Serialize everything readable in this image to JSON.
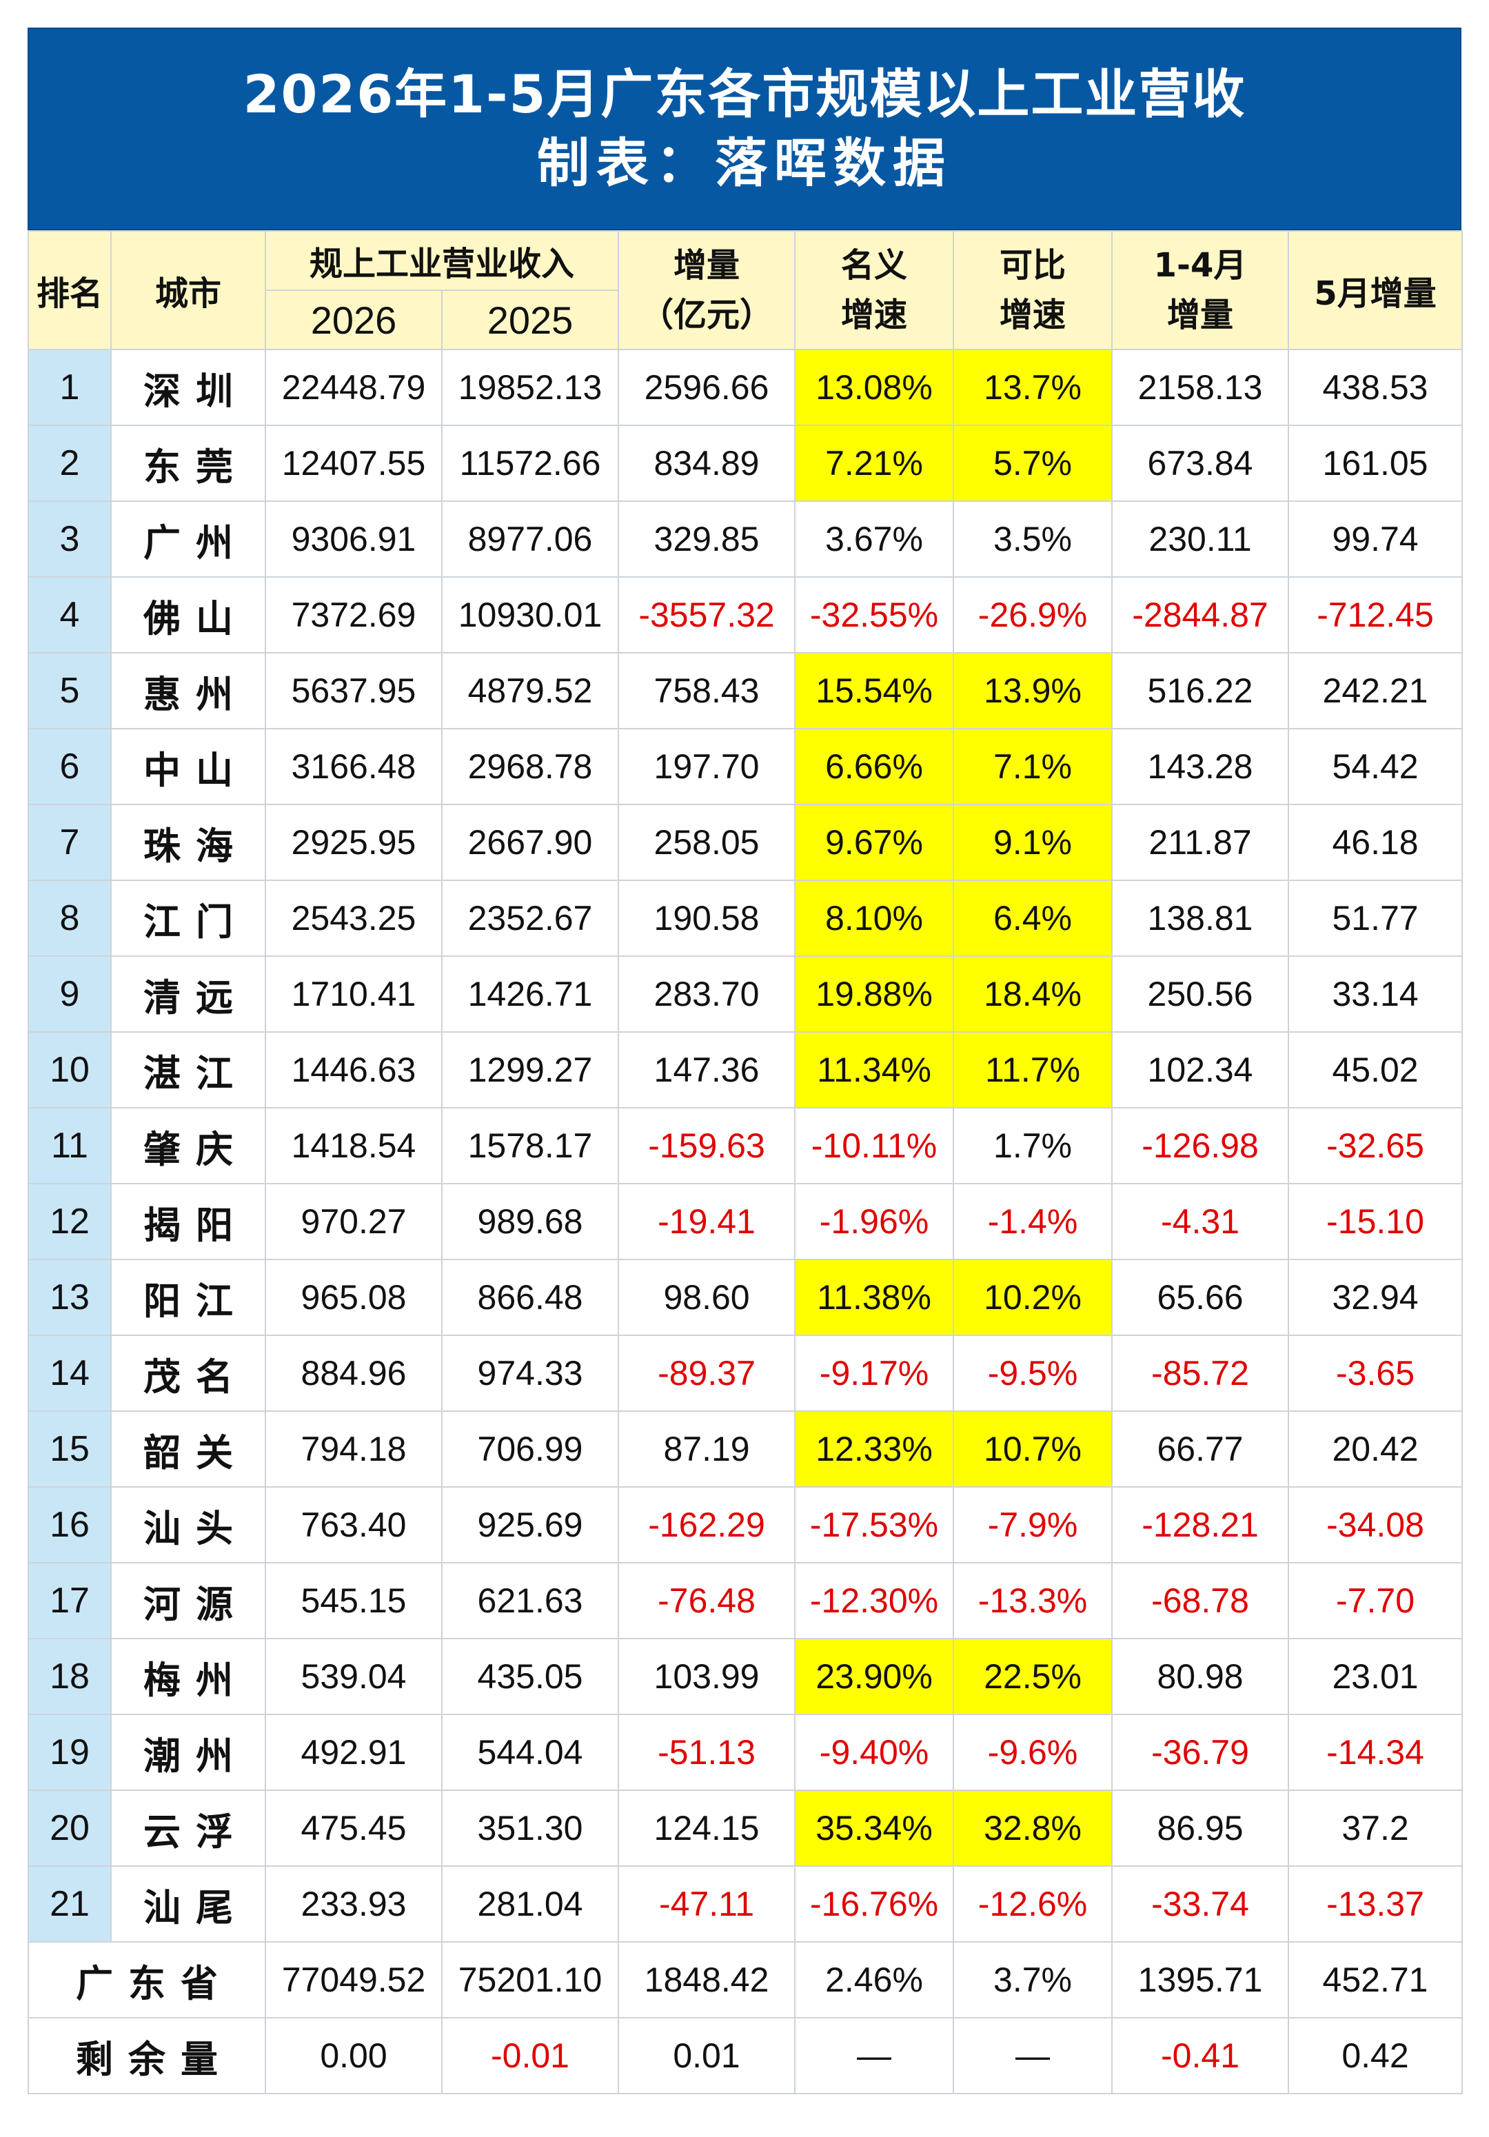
{
  "title": {
    "line1": "2026年1-5月广东各市规模以上工业营收",
    "line2": "制表：落晖数据"
  },
  "header": {
    "rank": "排名",
    "city": "城市",
    "revenue": "规上工业营业收入",
    "y2026": "2026",
    "y2025": "2025",
    "increase_l1": "增量",
    "increase_l2": "（亿元）",
    "nominal_l1": "名义",
    "nominal_l2": "增速",
    "comparable_l1": "可比",
    "comparable_l2": "增速",
    "jan_apr_l1": "1-4月",
    "jan_apr_l2": "增量",
    "may": "5月增量"
  },
  "rows": [
    {
      "rank": "1",
      "city": "深圳",
      "y2026": "22448.79",
      "y2025": "19852.13",
      "increase": "2596.66",
      "nominal": "13.08%",
      "comparable": "13.7%",
      "jan_apr": "2158.13",
      "may": "438.53"
    },
    {
      "rank": "2",
      "city": "东莞",
      "y2026": "12407.55",
      "y2025": "11572.66",
      "increase": "834.89",
      "nominal": "7.21%",
      "comparable": "5.7%",
      "jan_apr": "673.84",
      "may": "161.05"
    },
    {
      "rank": "3",
      "city": "广州",
      "y2026": "9306.91",
      "y2025": "8977.06",
      "increase": "329.85",
      "nominal": "3.67%",
      "comparable": "3.5%",
      "jan_apr": "230.11",
      "may": "99.74"
    },
    {
      "rank": "4",
      "city": "佛山",
      "y2026": "7372.69",
      "y2025": "10930.01",
      "increase": "-3557.32",
      "nominal": "-32.55%",
      "comparable": "-26.9%",
      "jan_apr": "-2844.87",
      "may": "-712.45"
    },
    {
      "rank": "5",
      "city": "惠州",
      "y2026": "5637.95",
      "y2025": "4879.52",
      "increase": "758.43",
      "nominal": "15.54%",
      "comparable": "13.9%",
      "jan_apr": "516.22",
      "may": "242.21"
    },
    {
      "rank": "6",
      "city": "中山",
      "y2026": "3166.48",
      "y2025": "2968.78",
      "increase": "197.70",
      "nominal": "6.66%",
      "comparable": "7.1%",
      "jan_apr": "143.28",
      "may": "54.42"
    },
    {
      "rank": "7",
      "city": "珠海",
      "y2026": "2925.95",
      "y2025": "2667.90",
      "increase": "258.05",
      "nominal": "9.67%",
      "comparable": "9.1%",
      "jan_apr": "211.87",
      "may": "46.18"
    },
    {
      "rank": "8",
      "city": "江门",
      "y2026": "2543.25",
      "y2025": "2352.67",
      "increase": "190.58",
      "nominal": "8.10%",
      "comparable": "6.4%",
      "jan_apr": "138.81",
      "may": "51.77"
    },
    {
      "rank": "9",
      "city": "清远",
      "y2026": "1710.41",
      "y2025": "1426.71",
      "increase": "283.70",
      "nominal": "19.88%",
      "comparable": "18.4%",
      "jan_apr": "250.56",
      "may": "33.14"
    },
    {
      "rank": "10",
      "city": "湛江",
      "y2026": "1446.63",
      "y2025": "1299.27",
      "increase": "147.36",
      "nominal": "11.34%",
      "comparable": "11.7%",
      "jan_apr": "102.34",
      "may": "45.02"
    },
    {
      "rank": "11",
      "city": "肇庆",
      "y2026": "1418.54",
      "y2025": "1578.17",
      "increase": "-159.63",
      "nominal": "-10.11%",
      "comparable": "1.7%",
      "jan_apr": "-126.98",
      "may": "-32.65"
    },
    {
      "rank": "12",
      "city": "揭阳",
      "y2026": "970.27",
      "y2025": "989.68",
      "increase": "-19.41",
      "nominal": "-1.96%",
      "comparable": "-1.4%",
      "jan_apr": "-4.31",
      "may": "-15.10"
    },
    {
      "rank": "13",
      "city": "阳江",
      "y2026": "965.08",
      "y2025": "866.48",
      "increase": "98.60",
      "nominal": "11.38%",
      "comparable": "10.2%",
      "jan_apr": "65.66",
      "may": "32.94"
    },
    {
      "rank": "14",
      "city": "茂名",
      "y2026": "884.96",
      "y2025": "974.33",
      "increase": "-89.37",
      "nominal": "-9.17%",
      "comparable": "-9.5%",
      "jan_apr": "-85.72",
      "may": "-3.65"
    },
    {
      "rank": "15",
      "city": "韶关",
      "y2026": "794.18",
      "y2025": "706.99",
      "increase": "87.19",
      "nominal": "12.33%",
      "comparable": "10.7%",
      "jan_apr": "66.77",
      "may": "20.42"
    },
    {
      "rank": "16",
      "city": "汕头",
      "y2026": "763.40",
      "y2025": "925.69",
      "increase": "-162.29",
      "nominal": "-17.53%",
      "comparable": "-7.9%",
      "jan_apr": "-128.21",
      "may": "-34.08"
    },
    {
      "rank": "17",
      "city": "河源",
      "y2026": "545.15",
      "y2025": "621.63",
      "increase": "-76.48",
      "nominal": "-12.30%",
      "comparable": "-13.3%",
      "jan_apr": "-68.78",
      "may": "-7.70"
    },
    {
      "rank": "18",
      "city": "梅州",
      "y2026": "539.04",
      "y2025": "435.05",
      "increase": "103.99",
      "nominal": "23.90%",
      "comparable": "22.5%",
      "jan_apr": "80.98",
      "may": "23.01"
    },
    {
      "rank": "19",
      "city": "潮州",
      "y2026": "492.91",
      "y2025": "544.04",
      "increase": "-51.13",
      "nominal": "-9.40%",
      "comparable": "-9.6%",
      "jan_apr": "-36.79",
      "may": "-14.34"
    },
    {
      "rank": "20",
      "city": "云浮",
      "y2026": "475.45",
      "y2025": "351.30",
      "increase": "124.15",
      "nominal": "35.34%",
      "comparable": "32.8%",
      "jan_apr": "86.95",
      "may": "37.2"
    },
    {
      "rank": "21",
      "city": "汕尾",
      "y2026": "233.93",
      "y2025": "281.04",
      "increase": "-47.11",
      "nominal": "-16.76%",
      "comparable": "-12.6%",
      "jan_apr": "-33.74",
      "may": "-13.37"
    }
  ],
  "totals": [
    {
      "label": "广东省",
      "y2026": "77049.52",
      "y2025": "75201.10",
      "increase": "1848.42",
      "nominal": "2.46%",
      "comparable": "3.7%",
      "jan_apr": "1395.71",
      "may": "452.71"
    },
    {
      "label": "剩余量",
      "y2026": "0.00",
      "y2025": "-0.01",
      "increase": "0.01",
      "nominal": "—",
      "comparable": "—",
      "jan_apr": "-0.41",
      "may": "0.42"
    }
  ],
  "colors": {
    "title_bg": "#0758a3",
    "header_bg": "#fff8c6",
    "rank_bg": "#c9e6f7",
    "highlight": "#ffff00",
    "negative": "#e00000"
  }
}
